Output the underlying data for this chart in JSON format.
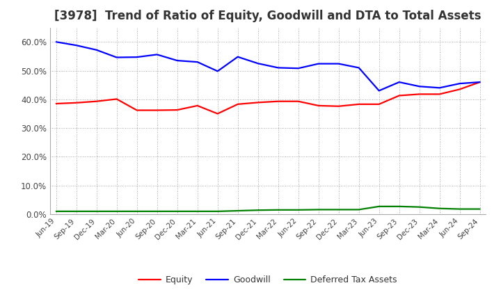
{
  "title": "[3978]  Trend of Ratio of Equity, Goodwill and DTA to Total Assets",
  "x_labels": [
    "Jun-19",
    "Sep-19",
    "Dec-19",
    "Mar-20",
    "Jun-20",
    "Sep-20",
    "Dec-20",
    "Mar-21",
    "Jun-21",
    "Sep-21",
    "Dec-21",
    "Mar-22",
    "Jun-22",
    "Sep-22",
    "Dec-22",
    "Mar-23",
    "Jun-23",
    "Sep-23",
    "Dec-23",
    "Mar-24",
    "Jun-24",
    "Sep-24"
  ],
  "equity": [
    0.385,
    0.388,
    0.393,
    0.401,
    0.362,
    0.362,
    0.363,
    0.378,
    0.35,
    0.383,
    0.389,
    0.393,
    0.393,
    0.378,
    0.376,
    0.383,
    0.383,
    0.413,
    0.418,
    0.418,
    0.435,
    0.46
  ],
  "goodwill": [
    0.6,
    0.588,
    0.572,
    0.546,
    0.547,
    0.556,
    0.535,
    0.53,
    0.498,
    0.548,
    0.525,
    0.51,
    0.508,
    0.524,
    0.524,
    0.51,
    0.43,
    0.46,
    0.445,
    0.44,
    0.455,
    0.46
  ],
  "dta": [
    0.01,
    0.01,
    0.01,
    0.01,
    0.01,
    0.01,
    0.01,
    0.01,
    0.01,
    0.012,
    0.014,
    0.015,
    0.015,
    0.016,
    0.016,
    0.016,
    0.027,
    0.027,
    0.025,
    0.02,
    0.018,
    0.018
  ],
  "equity_color": "#FF0000",
  "goodwill_color": "#0000FF",
  "dta_color": "#008000",
  "ylim": [
    0.0,
    0.65
  ],
  "yticks": [
    0.0,
    0.1,
    0.2,
    0.3,
    0.4,
    0.5,
    0.6
  ],
  "background_color": "#FFFFFF",
  "plot_bg_color": "#FFFFFF",
  "grid_color": "#888888",
  "title_fontsize": 12,
  "title_color": "#333333"
}
